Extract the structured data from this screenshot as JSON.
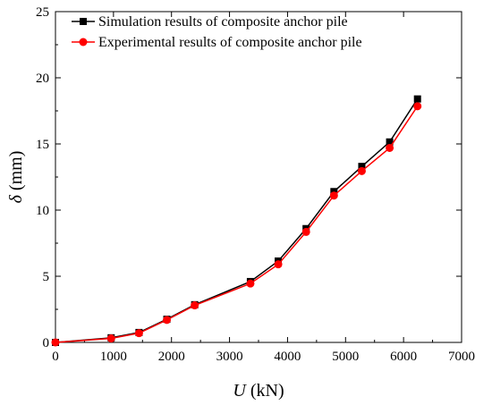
{
  "chart_data": {
    "type": "line",
    "title": "",
    "xlabel_var": "U",
    "xlabel_unit": " (kN)",
    "ylabel_var": "δ",
    "ylabel_unit": " (mm)",
    "xlim": [
      0,
      7000
    ],
    "ylim": [
      0,
      25
    ],
    "xticks": [
      "0",
      "1000",
      "2000",
      "3000",
      "4000",
      "5000",
      "6000",
      "7000"
    ],
    "yticks": [
      "0",
      "5",
      "10",
      "15",
      "20",
      "25"
    ],
    "grid": false,
    "legend_position": "top-left",
    "series": [
      {
        "name": "Simulation results of composite anchor pile",
        "color": "#000000",
        "marker": "square",
        "x": [
          0,
          960,
          1440,
          1920,
          2400,
          3360,
          3840,
          4320,
          4800,
          5280,
          5760,
          6240
        ],
        "y": [
          0,
          0.35,
          0.75,
          1.75,
          2.85,
          4.6,
          6.15,
          8.6,
          11.4,
          13.3,
          15.15,
          18.4
        ]
      },
      {
        "name": "Experimental results of composite anchor pile",
        "color": "#ff0000",
        "marker": "circle",
        "x": [
          0,
          960,
          1440,
          1920,
          2400,
          3360,
          3840,
          4320,
          4800,
          5280,
          5760,
          6240
        ],
        "y": [
          0,
          0.3,
          0.7,
          1.7,
          2.8,
          4.45,
          5.9,
          8.35,
          11.1,
          12.95,
          14.7,
          17.85
        ]
      }
    ]
  }
}
